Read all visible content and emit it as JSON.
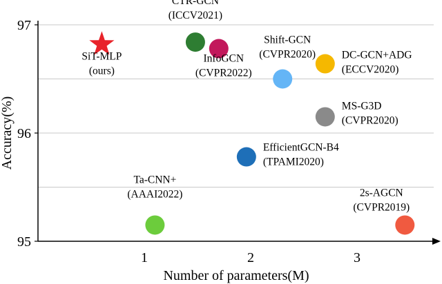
{
  "chart_data": {
    "type": "scatter",
    "xlabel": "Number of parameters(M)",
    "ylabel": "Accuracy(%)",
    "xlim": [
      0,
      3.7
    ],
    "ylim": [
      95,
      97.1
    ],
    "xticks": [
      1,
      2,
      3
    ],
    "yticks": [
      95,
      96,
      97
    ],
    "grid": "horizontal",
    "points": [
      {
        "label1": "SiT-MLP",
        "label2": "(ours)",
        "x": 0.6,
        "y": 96.82,
        "color": "#e8232a",
        "marker": "star"
      },
      {
        "label1": "CTR-GCN",
        "label2": "(ICCV2021)",
        "x": 1.48,
        "y": 96.84,
        "color": "#2e7d32",
        "marker": "circle"
      },
      {
        "label1": "InfoGCN",
        "label2": "(CVPR2022)",
        "x": 1.7,
        "y": 96.78,
        "color": "#c2185b",
        "marker": "circle"
      },
      {
        "label1": "Shift-GCN",
        "label2": "(CVPR2020)",
        "x": 2.3,
        "y": 96.5,
        "color": "#64b5f6",
        "marker": "circle"
      },
      {
        "label1": "DC-GCN+ADG",
        "label2": "(ECCV2020)",
        "x": 2.7,
        "y": 96.64,
        "color": "#f5b800",
        "marker": "circle"
      },
      {
        "label1": "MS-G3D",
        "label2": "(CVPR2020)",
        "x": 2.7,
        "y": 96.15,
        "color": "#8a8a8a",
        "marker": "circle"
      },
      {
        "label1": "EfficientGCN-B4",
        "label2": "(TPAMI2020)",
        "x": 1.96,
        "y": 95.78,
        "color": "#1e6fb8",
        "marker": "circle"
      },
      {
        "label1": "Ta-CNN+",
        "label2": "(AAAI2022)",
        "x": 1.1,
        "y": 95.15,
        "color": "#6ccc3c",
        "marker": "circle"
      },
      {
        "label1": "2s-AGCN",
        "label2": "(CVPR2019)",
        "x": 3.45,
        "y": 95.15,
        "color": "#f05a40",
        "marker": "circle"
      }
    ]
  }
}
